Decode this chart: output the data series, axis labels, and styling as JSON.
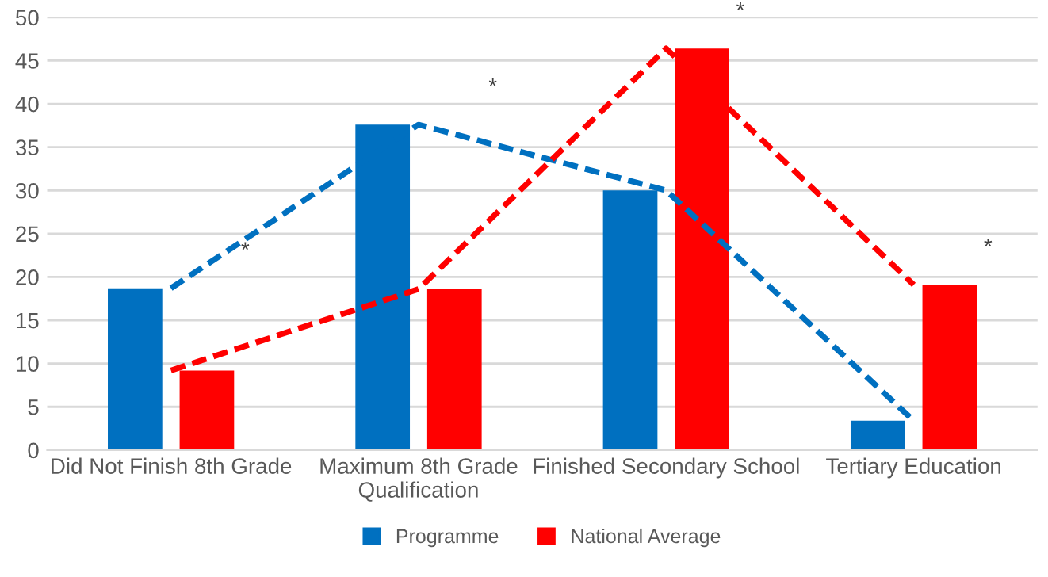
{
  "chart_data": {
    "type": "bar",
    "categories": [
      "Did Not Finish 8th Grade",
      "Maximum 8th Grade\nQualification",
      "Finished Secondary School",
      "Tertiary Education"
    ],
    "series": [
      {
        "name": "Programme",
        "color": "#0070c0",
        "values": [
          18.7,
          37.6,
          30.0,
          3.4
        ]
      },
      {
        "name": "National Average",
        "color": "#ff0000",
        "values": [
          9.2,
          18.6,
          46.4,
          19.1
        ]
      },
      {
        "type": "line",
        "color": "#0070c0",
        "line_style": "dashed",
        "values": [
          18.7,
          37.6,
          30.0,
          3.4
        ]
      },
      {
        "type": "line",
        "color": "#ff0000",
        "line_style": "dashed",
        "values": [
          9.2,
          18.6,
          46.4,
          19.1
        ]
      }
    ],
    "annotations": [
      "*",
      "*",
      "*",
      "*"
    ],
    "ylim": [
      0,
      50
    ],
    "yticks": [
      0,
      5,
      10,
      15,
      20,
      25,
      30,
      35,
      40,
      45,
      50
    ],
    "grid": "y",
    "legend": "bottom",
    "marker": "none"
  }
}
